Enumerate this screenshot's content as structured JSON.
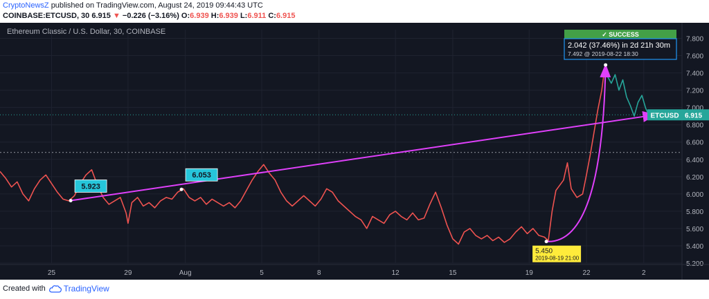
{
  "header": {
    "author": "CryptoNewsZ",
    "published": "published on TradingView.com, August 24, 2019 09:44:43 UTC",
    "symbol": "COINBASE:ETCUSD, 30",
    "last": "6.915",
    "change_arrow": "▼",
    "change": "−0.226 (−3.16%)",
    "open_label": "O:",
    "open": "6.939",
    "high_label": "H:",
    "high": "6.939",
    "low_label": "L:",
    "low": "6.911",
    "close_label": "C:",
    "close": "6.915"
  },
  "footer": {
    "created_with": "Created with",
    "brand": "TradingView"
  },
  "colors": {
    "background": "#131722",
    "down": "#ef5350",
    "up": "#26a69a",
    "annotation": "#e040fb",
    "label_teal": "#26c6da",
    "success": "#43a047",
    "measure_blue": "#2196f3",
    "info_yellow": "#ffeb3b"
  },
  "chart_data": {
    "type": "line",
    "title": "Ethereum Classic / U.S. Dollar, 30, COINBASE",
    "ylim": [
      5.2,
      7.9
    ],
    "yticks": [
      "7.800",
      "7.600",
      "7.400",
      "7.200",
      "7.000",
      "6.800",
      "6.600",
      "6.400",
      "6.200",
      "6.000",
      "5.800",
      "5.600",
      "5.400",
      "5.200"
    ],
    "xticks": [
      {
        "label": "25",
        "day": 25
      },
      {
        "label": "29",
        "day": 29
      },
      {
        "label": "Aug",
        "day": 32
      },
      {
        "label": "5",
        "day": 36
      },
      {
        "label": "8",
        "day": 39
      },
      {
        "label": "12",
        "day": 43
      },
      {
        "label": "15",
        "day": 46
      },
      {
        "label": "19",
        "day": 50
      },
      {
        "label": "22",
        "day": 53
      },
      {
        "label": "2",
        "day": 56
      }
    ],
    "x_unit": "days from July 1, 2019",
    "series": [
      {
        "color": "#ef5350",
        "points": [
          [
            22.3,
            6.26
          ],
          [
            22.6,
            6.18
          ],
          [
            22.9,
            6.08
          ],
          [
            23.2,
            6.14
          ],
          [
            23.5,
            6.0
          ],
          [
            23.8,
            5.92
          ],
          [
            24.1,
            6.06
          ],
          [
            24.4,
            6.16
          ],
          [
            24.7,
            6.22
          ],
          [
            25.0,
            6.12
          ],
          [
            25.3,
            6.02
          ],
          [
            25.6,
            5.94
          ],
          [
            25.9,
            5.92
          ],
          [
            26.2,
            5.98
          ],
          [
            26.5,
            6.12
          ],
          [
            26.8,
            6.22
          ],
          [
            27.1,
            6.28
          ],
          [
            27.4,
            6.1
          ],
          [
            27.7,
            5.96
          ],
          [
            28.0,
            5.88
          ],
          [
            28.3,
            5.92
          ],
          [
            28.6,
            5.96
          ],
          [
            28.9,
            5.78
          ],
          [
            29.0,
            5.66
          ],
          [
            29.2,
            5.9
          ],
          [
            29.5,
            5.96
          ],
          [
            29.8,
            5.86
          ],
          [
            30.1,
            5.9
          ],
          [
            30.4,
            5.84
          ],
          [
            30.7,
            5.92
          ],
          [
            31.0,
            5.96
          ],
          [
            31.3,
            5.94
          ],
          [
            31.6,
            6.02
          ],
          [
            31.9,
            6.06
          ],
          [
            32.2,
            5.96
          ],
          [
            32.5,
            5.92
          ],
          [
            32.8,
            5.96
          ],
          [
            33.1,
            5.88
          ],
          [
            33.4,
            5.94
          ],
          [
            33.7,
            5.9
          ],
          [
            34.0,
            5.86
          ],
          [
            34.3,
            5.9
          ],
          [
            34.6,
            5.84
          ],
          [
            34.9,
            5.92
          ],
          [
            35.2,
            6.04
          ],
          [
            35.5,
            6.16
          ],
          [
            35.8,
            6.26
          ],
          [
            36.1,
            6.34
          ],
          [
            36.4,
            6.24
          ],
          [
            36.7,
            6.16
          ],
          [
            37.0,
            6.02
          ],
          [
            37.3,
            5.92
          ],
          [
            37.6,
            5.86
          ],
          [
            37.9,
            5.92
          ],
          [
            38.2,
            5.98
          ],
          [
            38.5,
            5.92
          ],
          [
            38.8,
            5.86
          ],
          [
            39.1,
            5.94
          ],
          [
            39.4,
            6.06
          ],
          [
            39.7,
            6.02
          ],
          [
            40.0,
            5.92
          ],
          [
            40.3,
            5.86
          ],
          [
            40.6,
            5.8
          ],
          [
            40.9,
            5.74
          ],
          [
            41.2,
            5.7
          ],
          [
            41.5,
            5.6
          ],
          [
            41.8,
            5.74
          ],
          [
            42.1,
            5.7
          ],
          [
            42.4,
            5.66
          ],
          [
            42.7,
            5.76
          ],
          [
            43.0,
            5.8
          ],
          [
            43.3,
            5.74
          ],
          [
            43.6,
            5.7
          ],
          [
            43.9,
            5.78
          ],
          [
            44.2,
            5.7
          ],
          [
            44.5,
            5.72
          ],
          [
            44.8,
            5.88
          ],
          [
            45.1,
            6.02
          ],
          [
            45.4,
            5.84
          ],
          [
            45.7,
            5.64
          ],
          [
            46.0,
            5.48
          ],
          [
            46.3,
            5.42
          ],
          [
            46.6,
            5.56
          ],
          [
            46.9,
            5.6
          ],
          [
            47.2,
            5.52
          ],
          [
            47.5,
            5.48
          ],
          [
            47.8,
            5.52
          ],
          [
            48.1,
            5.46
          ],
          [
            48.4,
            5.5
          ],
          [
            48.7,
            5.44
          ],
          [
            49.0,
            5.48
          ],
          [
            49.3,
            5.56
          ],
          [
            49.6,
            5.62
          ],
          [
            49.9,
            5.54
          ],
          [
            50.2,
            5.6
          ],
          [
            50.5,
            5.52
          ],
          [
            50.8,
            5.5
          ],
          [
            51.0,
            5.46
          ],
          [
            51.2,
            5.8
          ],
          [
            51.4,
            6.04
          ],
          [
            51.6,
            6.1
          ],
          [
            51.8,
            6.16
          ],
          [
            52.0,
            6.36
          ],
          [
            52.2,
            6.06
          ],
          [
            52.5,
            5.96
          ],
          [
            52.8,
            6.0
          ],
          [
            53.0,
            6.22
          ],
          [
            53.2,
            6.46
          ],
          [
            53.4,
            6.72
          ],
          [
            53.6,
            6.98
          ],
          [
            53.8,
            7.2
          ],
          [
            53.95,
            7.45
          ]
        ]
      },
      {
        "color": "#26a69a",
        "points": [
          [
            53.95,
            7.45
          ],
          [
            54.1,
            7.36
          ],
          [
            54.3,
            7.28
          ],
          [
            54.5,
            7.38
          ],
          [
            54.7,
            7.2
          ],
          [
            54.9,
            7.32
          ],
          [
            55.1,
            7.12
          ],
          [
            55.3,
            7.02
          ],
          [
            55.5,
            6.9
          ],
          [
            55.7,
            7.06
          ],
          [
            55.9,
            7.14
          ],
          [
            56.1,
            6.99
          ],
          [
            56.25,
            6.92
          ]
        ]
      }
    ],
    "annotations": {
      "trendline": {
        "from": [
          26.0,
          5.923
        ],
        "to": [
          56.6,
          6.915
        ],
        "color": "#e040fb"
      },
      "curve": {
        "from": [
          50.9,
          5.45
        ],
        "to": [
          54.0,
          7.492
        ],
        "color": "#e040fb"
      },
      "labels": [
        {
          "text": "5.923",
          "x": 26.0,
          "y": 5.923
        },
        {
          "text": "6.053",
          "x": 31.8,
          "y": 6.053
        }
      ],
      "measure": {
        "status": "✓ SUCCESS",
        "line1": "2.042 (37.46%) in 2d 21h 30m",
        "line2": "7.492 @ 2019-08-22 18:30"
      },
      "point_info": {
        "value": "5.450",
        "date": "2019-08-19 21:00",
        "x": 50.9,
        "y": 5.45
      },
      "last_label": {
        "symbol": "ETCUSD",
        "value": "6.915"
      },
      "hline": 6.48
    }
  }
}
